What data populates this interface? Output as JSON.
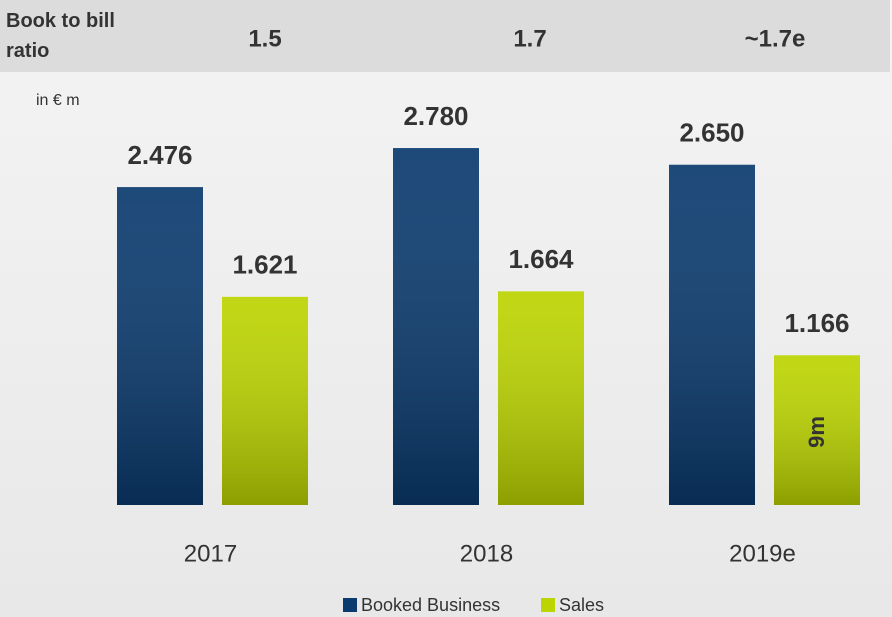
{
  "chart_data": {
    "type": "bar",
    "book_to_bill": {
      "label": "Book to bill ratio",
      "values": [
        "1.5",
        "1.7",
        "~1.7e"
      ]
    },
    "unit_label": "in € m",
    "categories": [
      "2017",
      "2018",
      "2019e"
    ],
    "series": [
      {
        "name": "Booked Business",
        "color": "#0a3a6e",
        "values": [
          2476,
          2780,
          2650
        ],
        "value_labels": [
          "2.476",
          "2.780",
          "2.650"
        ]
      },
      {
        "name": "Sales",
        "color": "#bcd400",
        "values": [
          1621,
          1664,
          1166
        ],
        "value_labels": [
          "1.621",
          "1.664",
          "1.166"
        ]
      }
    ],
    "annotations": [
      {
        "text": "9m"
      }
    ]
  }
}
